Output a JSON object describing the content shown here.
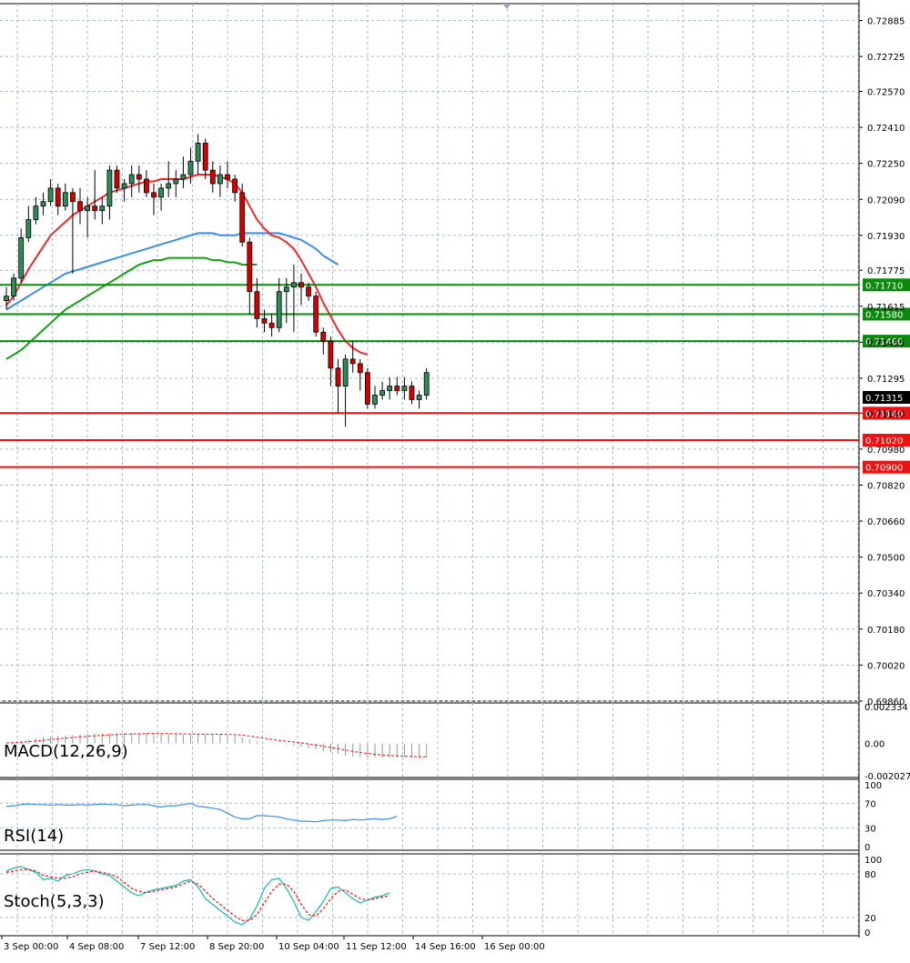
{
  "chart_data": [
    {
      "type": "candlestick",
      "timeframe": "4H",
      "ylim": [
        0.6986,
        0.7296
      ],
      "y_ticks": [
        "0.72885",
        "0.72725",
        "0.72570",
        "0.72410",
        "0.72250",
        "0.72090",
        "0.71930",
        "0.71775",
        "0.71615",
        "0.71455",
        "0.71295",
        "0.71140",
        "0.70980",
        "0.70820",
        "0.70660",
        "0.70500",
        "0.70340",
        "0.70180",
        "0.70020",
        "0.69860"
      ],
      "time_labels": [
        "3 Sep 00:00",
        "4 Sep 08:00",
        "7 Sep 12:00",
        "8 Sep 20:00",
        "10 Sep 04:00",
        "11 Sep 12:00",
        "14 Sep 16:00",
        "16 Sep 00:00"
      ],
      "grid": true,
      "colors": {
        "bull": "#2e8b57",
        "bear": "#d40000",
        "grid": "#a9b9c9",
        "ma_fast": "#ee2a2a",
        "ma_mid": "#3a8ee8",
        "ma_slow": "#13a013",
        "resistance": "#0a8a0a",
        "support": "#ee1111"
      },
      "current_price": "0.71315",
      "levels": [
        {
          "label": "0.71710",
          "value": 0.7171,
          "kind": "resistance"
        },
        {
          "label": "0.71580",
          "value": 0.7158,
          "kind": "resistance"
        },
        {
          "label": "0.71460",
          "value": 0.7146,
          "kind": "resistance"
        },
        {
          "label": "0.71140",
          "value": 0.7114,
          "kind": "support"
        },
        {
          "label": "0.71020",
          "value": 0.7102,
          "kind": "support"
        },
        {
          "label": "0.70900",
          "value": 0.709,
          "kind": "support"
        }
      ],
      "candles": [
        [
          0.7164,
          0.717,
          0.716,
          0.7166
        ],
        [
          0.7166,
          0.7176,
          0.7164,
          0.7174
        ],
        [
          0.7174,
          0.7196,
          0.7172,
          0.7192
        ],
        [
          0.7192,
          0.7206,
          0.719,
          0.72
        ],
        [
          0.72,
          0.721,
          0.7198,
          0.7206
        ],
        [
          0.7206,
          0.7212,
          0.7202,
          0.7208
        ],
        [
          0.7208,
          0.7218,
          0.7206,
          0.7214
        ],
        [
          0.7214,
          0.7216,
          0.7202,
          0.7206
        ],
        [
          0.7206,
          0.7216,
          0.7204,
          0.7212
        ],
        [
          0.7212,
          0.7214,
          0.7176,
          0.7208
        ],
        [
          0.7208,
          0.7214,
          0.7198,
          0.7204
        ],
        [
          0.7204,
          0.721,
          0.7192,
          0.7206
        ],
        [
          0.7206,
          0.7222,
          0.72,
          0.7204
        ],
        [
          0.7204,
          0.721,
          0.7198,
          0.7206
        ],
        [
          0.7206,
          0.7224,
          0.72,
          0.7222
        ],
        [
          0.7222,
          0.7224,
          0.7212,
          0.7214
        ],
        [
          0.7214,
          0.7218,
          0.7208,
          0.7216
        ],
        [
          0.7216,
          0.7224,
          0.721,
          0.722
        ],
        [
          0.722,
          0.7224,
          0.7212,
          0.7218
        ],
        [
          0.7218,
          0.7222,
          0.721,
          0.7212
        ],
        [
          0.7212,
          0.7216,
          0.7202,
          0.721
        ],
        [
          0.721,
          0.7216,
          0.7204,
          0.7214
        ],
        [
          0.7214,
          0.7226,
          0.721,
          0.7216
        ],
        [
          0.7216,
          0.7222,
          0.721,
          0.7218
        ],
        [
          0.7218,
          0.7228,
          0.7214,
          0.722
        ],
        [
          0.722,
          0.7232,
          0.7216,
          0.7226
        ],
        [
          0.7226,
          0.7238,
          0.722,
          0.7234
        ],
        [
          0.7234,
          0.7236,
          0.7218,
          0.7222
        ],
        [
          0.7222,
          0.7226,
          0.7212,
          0.7216
        ],
        [
          0.7216,
          0.7224,
          0.721,
          0.722
        ],
        [
          0.722,
          0.7226,
          0.7214,
          0.7218
        ],
        [
          0.7218,
          0.722,
          0.7208,
          0.7212
        ],
        [
          0.7212,
          0.7216,
          0.7188,
          0.719
        ],
        [
          0.719,
          0.7192,
          0.7158,
          0.7168
        ],
        [
          0.7168,
          0.7174,
          0.7152,
          0.7156
        ],
        [
          0.7156,
          0.716,
          0.715,
          0.7154
        ],
        [
          0.7154,
          0.7158,
          0.7148,
          0.7152
        ],
        [
          0.7152,
          0.7174,
          0.715,
          0.7168
        ],
        [
          0.7168,
          0.7174,
          0.7154,
          0.717
        ],
        [
          0.717,
          0.718,
          0.715,
          0.7172
        ],
        [
          0.7172,
          0.7176,
          0.7162,
          0.717
        ],
        [
          0.717,
          0.7172,
          0.7164,
          0.7166
        ],
        [
          0.7166,
          0.7168,
          0.7148,
          0.715
        ],
        [
          0.715,
          0.7152,
          0.714,
          0.7146
        ],
        [
          0.7146,
          0.7148,
          0.7126,
          0.7134
        ],
        [
          0.7134,
          0.7138,
          0.7114,
          0.7126
        ],
        [
          0.7126,
          0.714,
          0.7108,
          0.7138
        ],
        [
          0.7138,
          0.7146,
          0.7132,
          0.7136
        ],
        [
          0.7136,
          0.7138,
          0.7124,
          0.7132
        ],
        [
          0.7132,
          0.7134,
          0.7116,
          0.7118
        ],
        [
          0.7118,
          0.7126,
          0.7116,
          0.7122
        ],
        [
          0.7122,
          0.7128,
          0.712,
          0.7124
        ],
        [
          0.7124,
          0.713,
          0.712,
          0.7126
        ],
        [
          0.7126,
          0.713,
          0.7122,
          0.7124
        ],
        [
          0.7124,
          0.713,
          0.712,
          0.7126
        ],
        [
          0.7126,
          0.7128,
          0.7118,
          0.712
        ],
        [
          0.712,
          0.7124,
          0.7116,
          0.7122
        ],
        [
          0.7122,
          0.7134,
          0.712,
          0.7132
        ]
      ],
      "ma_fast": [
        0.7162,
        0.7166,
        0.7172,
        0.7178,
        0.7183,
        0.7188,
        0.7193,
        0.7196,
        0.7199,
        0.7202,
        0.7204,
        0.7206,
        0.7208,
        0.721,
        0.7212,
        0.7213,
        0.7214,
        0.7215,
        0.7216,
        0.7217,
        0.7217,
        0.7218,
        0.7218,
        0.7218,
        0.7218,
        0.7219,
        0.722,
        0.722,
        0.722,
        0.7219,
        0.7218,
        0.7216,
        0.7212,
        0.7206,
        0.72,
        0.7196,
        0.7193,
        0.7192,
        0.719,
        0.7187,
        0.7182,
        0.7176,
        0.717,
        0.7163,
        0.7157,
        0.7151,
        0.7146,
        0.7143,
        0.7141,
        0.714
      ],
      "ma_mid": [
        0.716,
        0.7162,
        0.7164,
        0.7166,
        0.7168,
        0.717,
        0.7172,
        0.7174,
        0.7176,
        0.7177,
        0.7178,
        0.7179,
        0.718,
        0.7181,
        0.7182,
        0.7183,
        0.7184,
        0.7185,
        0.7186,
        0.7187,
        0.7188,
        0.7189,
        0.719,
        0.7191,
        0.7192,
        0.7193,
        0.7194,
        0.7194,
        0.7194,
        0.7193,
        0.7193,
        0.7193,
        0.7194,
        0.7194,
        0.7194,
        0.7194,
        0.7194,
        0.7194,
        0.7193,
        0.7192,
        0.7191,
        0.7189,
        0.7187,
        0.7184,
        0.7182,
        0.718
      ],
      "ma_slow": [
        0.7138,
        0.714,
        0.7142,
        0.7145,
        0.7148,
        0.7151,
        0.7154,
        0.7157,
        0.716,
        0.7162,
        0.7164,
        0.7166,
        0.7168,
        0.717,
        0.7172,
        0.7174,
        0.7176,
        0.7178,
        0.718,
        0.7181,
        0.7182,
        0.7182,
        0.7183,
        0.7183,
        0.7183,
        0.7183,
        0.7183,
        0.7183,
        0.7182,
        0.7182,
        0.7181,
        0.7181,
        0.718,
        0.718,
        0.718
      ],
      "macd": {
        "label": "MACD(12,26,9)",
        "ylim": [
          -0.002027,
          0.002334
        ],
        "ticks": [
          "0.002334",
          "0.00",
          "-0.002027"
        ]
      },
      "rsi": {
        "label": "RSI(14)",
        "ticks": [
          "100",
          "70",
          "30",
          "0"
        ],
        "values": [
          65,
          66,
          68,
          69,
          68,
          68,
          67,
          68,
          67,
          67,
          68,
          67,
          68,
          69,
          68,
          68,
          66,
          67,
          68,
          68,
          66,
          64,
          66,
          66,
          68,
          70,
          65,
          64,
          62,
          60,
          54,
          48,
          45,
          45,
          50,
          50,
          49,
          48,
          45,
          43,
          41,
          41,
          40,
          42,
          43,
          43,
          42,
          44,
          43,
          44,
          45,
          44,
          45,
          49
        ]
      },
      "stoch": {
        "label": "Stoch(5,3,3)",
        "ticks": [
          "100",
          "80",
          "20",
          "0"
        ],
        "main": [
          84,
          88,
          90,
          86,
          82,
          72,
          74,
          70,
          78,
          80,
          84,
          86,
          84,
          80,
          78,
          70,
          62,
          54,
          50,
          55,
          58,
          60,
          62,
          64,
          70,
          72,
          62,
          46,
          38,
          30,
          22,
          14,
          10,
          18,
          36,
          60,
          72,
          74,
          60,
          42,
          20,
          16,
          28,
          42,
          60,
          62,
          54,
          46,
          40,
          44,
          48,
          50,
          54
        ],
        "signal": [
          82,
          84,
          86,
          86,
          84,
          78,
          76,
          74,
          74,
          76,
          80,
          82,
          84,
          82,
          80,
          76,
          68,
          60,
          56,
          54,
          56,
          58,
          60,
          62,
          66,
          70,
          66,
          56,
          46,
          38,
          30,
          22,
          16,
          16,
          24,
          40,
          56,
          66,
          66,
          56,
          38,
          24,
          22,
          32,
          46,
          56,
          58,
          52,
          46,
          44,
          46,
          48,
          50
        ]
      }
    }
  ]
}
